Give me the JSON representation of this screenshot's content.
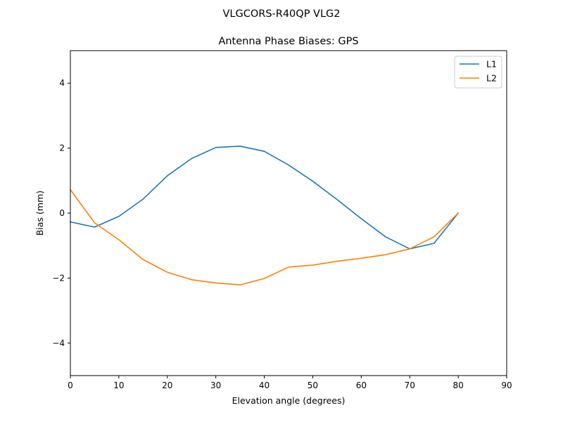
{
  "figure": {
    "suptitle": "VLGCORS-R40QP   VLG2"
  },
  "chart_data": {
    "type": "line",
    "title": "Antenna Phase Biases: GPS",
    "xlabel": "Elevation angle (degrees)",
    "ylabel": "Bias (mm)",
    "xlim": [
      0,
      90
    ],
    "ylim": [
      -5,
      5
    ],
    "xticks": [
      0,
      10,
      20,
      30,
      40,
      50,
      60,
      70,
      80,
      90
    ],
    "yticks": [
      -4,
      -2,
      0,
      2,
      4
    ],
    "ytick_labels": [
      "−4",
      "−2",
      "0",
      "2",
      "4"
    ],
    "grid": false,
    "legend_position": "top-right",
    "x": [
      0,
      5,
      10,
      15,
      20,
      25,
      30,
      35,
      40,
      45,
      50,
      55,
      60,
      65,
      70,
      75,
      80
    ],
    "series": [
      {
        "name": "L1",
        "color": "#1f77b4",
        "values": [
          -0.27,
          -0.43,
          -0.1,
          0.43,
          1.15,
          1.68,
          2.02,
          2.06,
          1.9,
          1.48,
          0.98,
          0.42,
          -0.17,
          -0.73,
          -1.1,
          -0.93,
          0.0
        ]
      },
      {
        "name": "L2",
        "color": "#ff7f0e",
        "values": [
          0.72,
          -0.3,
          -0.82,
          -1.43,
          -1.82,
          -2.05,
          -2.15,
          -2.21,
          -2.01,
          -1.66,
          -1.6,
          -1.48,
          -1.39,
          -1.28,
          -1.1,
          -0.73,
          0.0
        ]
      }
    ]
  }
}
